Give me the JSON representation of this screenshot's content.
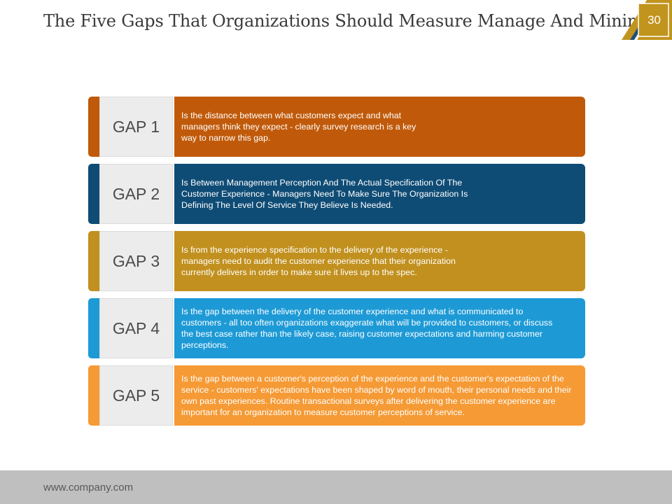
{
  "slide": {
    "title": "The Five Gaps That Organizations Should Measure Manage And Minimize",
    "page_number": "30",
    "footer_url": "www.company.com"
  },
  "colors": {
    "badge_gold": "#c1941d",
    "badge_navy": "#1f4e79"
  },
  "gaps": [
    {
      "label": "GAP 1",
      "color": "#c05a0a",
      "description": "Is the distance between what customers expect and what managers think they expect - clearly survey research is a key way to narrow this gap."
    },
    {
      "label": "GAP 2",
      "color": "#0f4c75",
      "description": "Is Between Management Perception And The Actual Specification Of The Customer Experience - Managers Need To Make Sure The Organization Is Defining The Level Of Service They Believe Is Needed."
    },
    {
      "label": "GAP 3",
      "color": "#c1901e",
      "description": "Is from the experience specification to the delivery of the experience - managers need to audit the customer experience that their organization currently delivers in order to make sure it lives up to the spec."
    },
    {
      "label": "GAP 4",
      "color": "#1d9ad6",
      "description": "Is the gap between the delivery of the customer experience and what is communicated to customers - all too often organizations exaggerate what will be provided to customers, or discuss the best case rather than the likely case, raising customer expectations and harming customer perceptions."
    },
    {
      "label": "GAP 5",
      "color": "#f59a35",
      "description": "Is the gap between a customer's perception of the experience and the customer's expectation of the service - customers' expectations have been shaped by word of mouth, their personal needs and their own past experiences. Routine transactional surveys after delivering the customer experience are important for an organization to measure customer perceptions of service."
    }
  ]
}
